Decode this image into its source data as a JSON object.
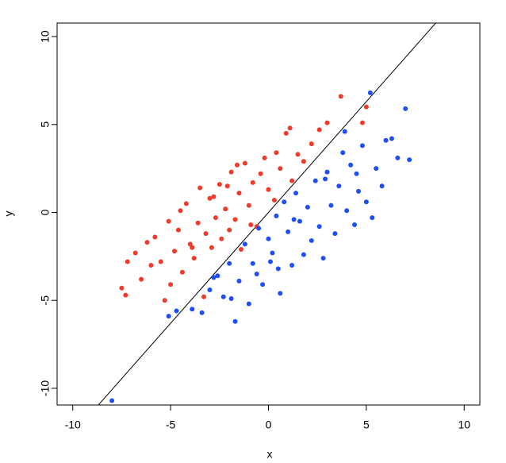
{
  "chart_data": {
    "type": "scatter",
    "xlabel": "x",
    "ylabel": "y",
    "xlim": [
      -10.8,
      10.8
    ],
    "ylim": [
      -10.95,
      10.77
    ],
    "xticks": [
      -10,
      -5,
      0,
      5,
      10
    ],
    "yticks": [
      -10,
      -5,
      0,
      5,
      10
    ],
    "line": {
      "slope": 1.26,
      "intercept": 0,
      "color": "#000000"
    },
    "series": [
      {
        "color": "#ef3a2c",
        "x": [
          -7.5,
          -7.3,
          -7.2,
          -6.8,
          -6.5,
          -6.2,
          -6,
          -5.8,
          -5.5,
          -5.3,
          -5.1,
          -4.8,
          -4.6,
          -4.4,
          -4.2,
          -4,
          -3.8,
          -3.6,
          -3.5,
          -3.3,
          -3.2,
          -3,
          -2.9,
          -2.7,
          -2.5,
          -2.4,
          -2.2,
          -2,
          -1.9,
          -1.7,
          -1.5,
          -1.4,
          -1.2,
          -1,
          -0.8,
          -0.6,
          -0.4,
          -0.2,
          0,
          0.3,
          0.6,
          0.9,
          1.2,
          1.5,
          1.8,
          2.2,
          2.6,
          3,
          3.7,
          4.8,
          5,
          -3.9,
          -2.8,
          -1.6,
          -0.9,
          0.4,
          1.1,
          -5,
          -4.5,
          -2.1
        ],
        "y": [
          -4.3,
          -4.7,
          -2.8,
          -2.3,
          -3.8,
          -1.7,
          -3,
          -1.4,
          -2.8,
          -5,
          -0.5,
          -2.2,
          -1,
          -3.4,
          0.5,
          -1.8,
          -2.6,
          -0.6,
          1.4,
          -4.8,
          -1.2,
          0.8,
          -2,
          -0.3,
          1.6,
          -1.5,
          0.2,
          -1,
          2.3,
          -0.4,
          1.1,
          -2.1,
          2.8,
          0.4,
          1.7,
          -0.8,
          2.2,
          3.1,
          1.3,
          0.7,
          2.5,
          4.5,
          1.8,
          3.3,
          2.9,
          3.9,
          4.7,
          5.1,
          6.6,
          5.1,
          6,
          -2,
          0.9,
          2.7,
          -0.7,
          3.4,
          4.8,
          -4.1,
          0.1,
          1.5
        ]
      },
      {
        "color": "#1f4ef5",
        "x": [
          -8,
          -5.1,
          -4.7,
          -3.9,
          -3.4,
          -3,
          -2.6,
          -2.3,
          -2,
          -1.7,
          -1.5,
          -1.2,
          -1,
          -0.8,
          -0.5,
          -0.3,
          0,
          0.2,
          0.4,
          0.6,
          0.8,
          1,
          1.2,
          1.4,
          1.6,
          1.8,
          2,
          2.2,
          2.4,
          2.6,
          2.8,
          3,
          3.2,
          3.4,
          3.6,
          3.8,
          4,
          4.2,
          4.4,
          4.6,
          4.8,
          5,
          5.2,
          5.5,
          5.8,
          6,
          6.3,
          6.6,
          7,
          7.2,
          -2.8,
          -1.9,
          0.5,
          1.3,
          2.9,
          3.9,
          4.5,
          5.3,
          0.1,
          -0.6
        ],
        "y": [
          -10.7,
          -5.9,
          -5.6,
          -5.5,
          -5.7,
          -4.4,
          -3.6,
          -4.8,
          -2.9,
          -6.2,
          -3.9,
          -1.8,
          -5.2,
          -2.9,
          -0.9,
          -4.1,
          -1.5,
          -2.3,
          -0.2,
          -4.6,
          0.6,
          -1.1,
          -3,
          1.1,
          -0.5,
          -2.4,
          0.3,
          -1.6,
          1.8,
          -0.8,
          -2.6,
          2.3,
          0.4,
          -1.2,
          1.5,
          3.4,
          0.1,
          2.7,
          -0.7,
          1.2,
          3.8,
          0.6,
          6.8,
          2.5,
          1.5,
          4.1,
          4.2,
          3.1,
          5.9,
          3,
          -3.7,
          -4.9,
          -3.2,
          -0.4,
          1.9,
          4.6,
          2.2,
          -0.3,
          -2.8,
          -3.5
        ]
      }
    ]
  }
}
